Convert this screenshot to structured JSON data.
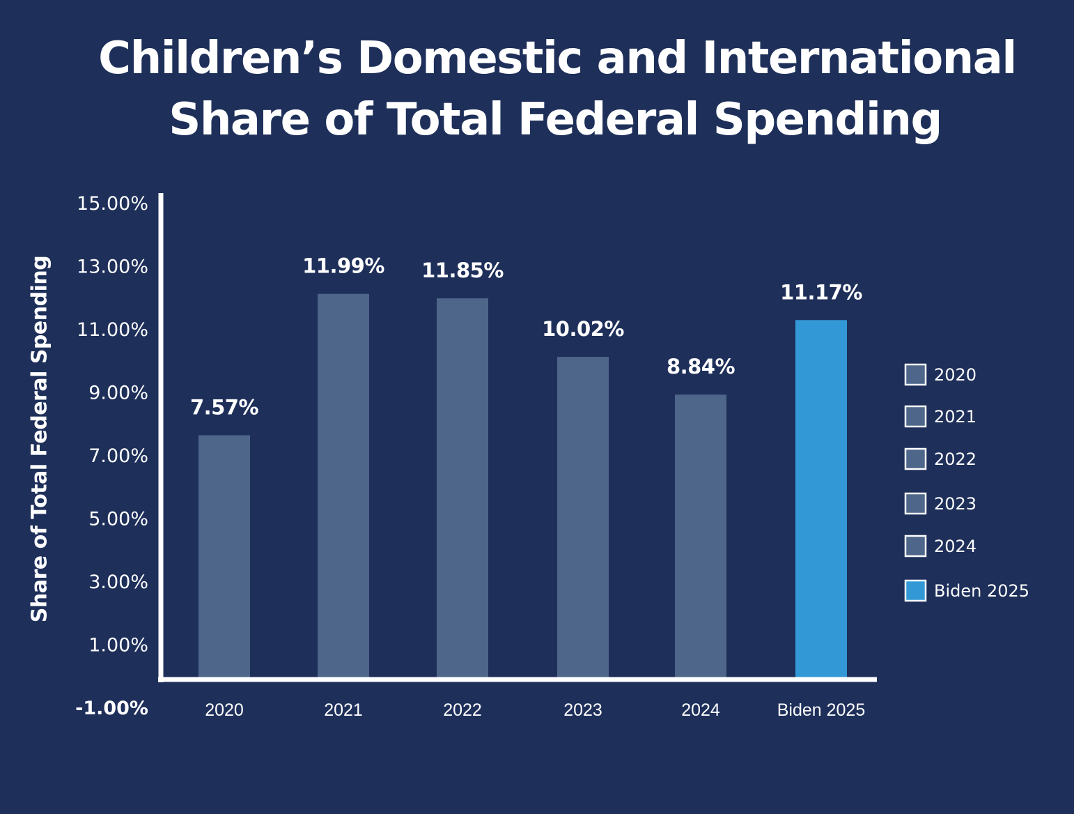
{
  "title_lines": [
    "Children’s Domestic and International",
    "Share of Total Federal Spending"
  ],
  "chart_data": {
    "type": "bar",
    "title": "Children’s Domestic and International Share of Total Federal Spending",
    "xlabel": "",
    "ylabel": "Share of Total Federal Spending",
    "categories": [
      "2020",
      "2021",
      "2022",
      "2023",
      "2024",
      "Biden 2025"
    ],
    "values": [
      7.57,
      11.99,
      11.85,
      10.02,
      8.84,
      11.17
    ],
    "value_labels": [
      "7.57%",
      "11.99%",
      "11.85%",
      "10.02%",
      "8.84%",
      "11.17%"
    ],
    "colors": [
      "#4e6689",
      "#4e6689",
      "#4e6689",
      "#4e6689",
      "#4e6689",
      "#3399d6"
    ],
    "ytick_labels": [
      "15.00%",
      "13.00%",
      "11.00%",
      "9.00%",
      "7.00%",
      "5.00%",
      "3.00%",
      "1.00%",
      "-1.00%"
    ],
    "ytick_values": [
      15,
      13,
      11,
      9,
      7,
      5,
      3,
      1,
      -1
    ],
    "ylim": [
      -1,
      15
    ],
    "grid": false,
    "legend": {
      "placement": "right",
      "entries": [
        "2020",
        "2021",
        "2022",
        "2023",
        "2024",
        "Biden 2025"
      ]
    }
  },
  "colors": {
    "background": "#1e2f5a",
    "bar": "#4e6689",
    "highlight_bar": "#3399d6",
    "axis": "#ffffff"
  }
}
